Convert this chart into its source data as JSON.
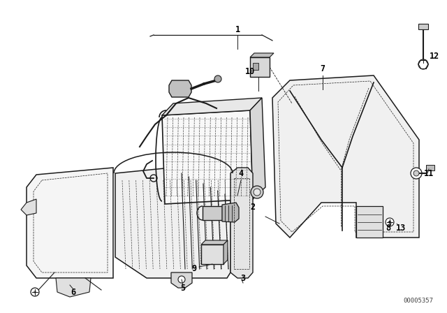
{
  "background_color": "#ffffff",
  "diagram_id": "00005357",
  "line_color": "#1a1a1a",
  "text_color": "#000000",
  "font_size": 8.5,
  "fig_w": 6.4,
  "fig_h": 4.48,
  "dpi": 100
}
